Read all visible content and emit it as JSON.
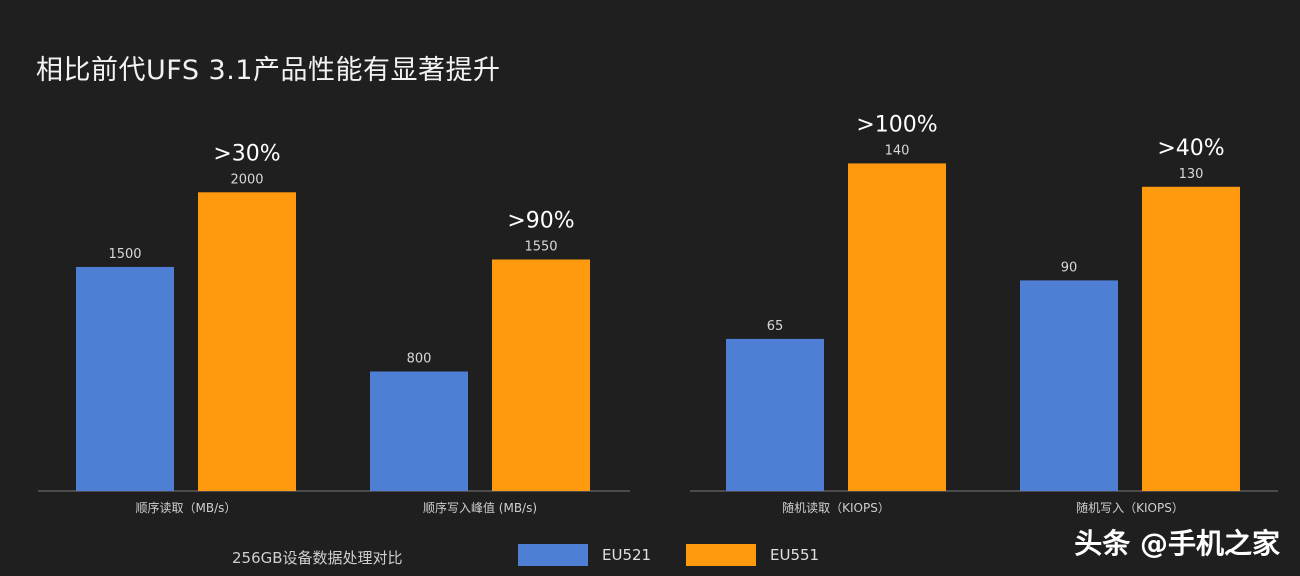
{
  "title": "相比前代UFS 3.1产品性能有显著提升",
  "footer_note": "256GB设备数据处理对比",
  "watermark": "头条 @手机之家",
  "legend": [
    {
      "label": "EU521",
      "color": "#4f7fd4"
    },
    {
      "label": "EU551",
      "color": "#ff9a0f"
    }
  ],
  "chart_data": [
    {
      "type": "bar",
      "categories": [
        "顺序读取（MB/s）",
        "顺序写入峰值 (MB/s)"
      ],
      "series": [
        {
          "name": "EU521",
          "color": "#4f7fd4",
          "values": [
            1500,
            800
          ]
        },
        {
          "name": "EU551",
          "color": "#ff9a0f",
          "values": [
            2000,
            1550
          ]
        }
      ],
      "value_labels": {
        "EU521": [
          "1500",
          "800"
        ],
        "EU551": [
          "2000",
          "1550"
        ]
      },
      "annotations": [
        ">30%",
        ">90%"
      ],
      "ylim": [
        0,
        2350
      ]
    },
    {
      "type": "bar",
      "categories": [
        "随机读取（KIOPS）",
        "随机写入（KIOPS）"
      ],
      "series": [
        {
          "name": "EU521",
          "color": "#4f7fd4",
          "values": [
            65,
            90
          ]
        },
        {
          "name": "EU551",
          "color": "#ff9a0f",
          "values": [
            140,
            130
          ]
        }
      ],
      "value_labels": {
        "EU521": [
          "65",
          "90"
        ],
        "EU551": [
          "140",
          "130"
        ]
      },
      "annotations": [
        ">100%",
        ">40%"
      ],
      "ylim": [
        0,
        150
      ]
    }
  ]
}
